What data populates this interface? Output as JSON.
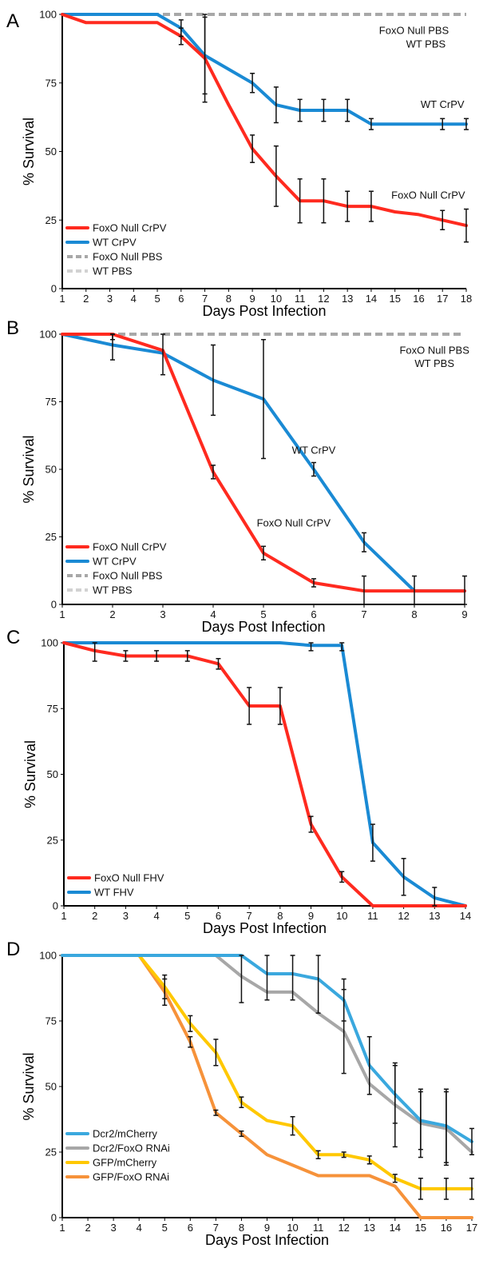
{
  "chart_data": [
    {
      "panel": "A",
      "type": "line",
      "xlabel": "Days Post Infection",
      "ylabel": "% Survival",
      "x": [
        1,
        2,
        3,
        4,
        5,
        6,
        7,
        8,
        9,
        10,
        11,
        12,
        13,
        14,
        15,
        16,
        17,
        18
      ],
      "xlim": [
        1,
        18
      ],
      "ylim": [
        0,
        100
      ],
      "yticks": [
        0,
        25,
        50,
        75,
        100
      ],
      "grid": false,
      "legend_position": "bottom-left",
      "series": [
        {
          "name": "FoxO Null CrPV",
          "color": "#ff2a1f",
          "dash": false,
          "x": [
            1,
            2,
            3,
            4,
            5,
            6,
            7,
            8,
            9,
            10,
            11,
            12,
            13,
            14,
            15,
            16,
            17,
            18
          ],
          "y": [
            100,
            97,
            97,
            97,
            97,
            92,
            84,
            67,
            51,
            41,
            32,
            32,
            30,
            30,
            28,
            27,
            25,
            23
          ],
          "err": [
            0,
            0,
            0,
            0,
            0,
            3,
            16,
            0,
            5,
            11,
            8,
            8,
            5.5,
            5.5,
            0,
            0,
            3.5,
            6
          ]
        },
        {
          "name": "WT CrPV",
          "color": "#1a8ad4",
          "dash": false,
          "x": [
            1,
            2,
            3,
            4,
            5,
            6,
            7,
            8,
            9,
            10,
            11,
            12,
            13,
            14,
            15,
            16,
            17,
            18
          ],
          "y": [
            100,
            100,
            100,
            100,
            100,
            95,
            85,
            80,
            75,
            67,
            65,
            65,
            65,
            60,
            60,
            60,
            60,
            60
          ],
          "err": [
            0,
            0,
            0,
            0,
            0,
            3,
            14,
            0,
            3.5,
            6.5,
            4,
            4,
            4,
            2,
            0,
            0,
            2,
            2
          ]
        },
        {
          "name": "FoxO Null PBS",
          "color": "#a8a8a8",
          "dash": true,
          "x": [
            1,
            18
          ],
          "y": [
            100,
            100
          ],
          "err": [
            0,
            0
          ]
        },
        {
          "name": "WT PBS",
          "color": "#d2d2d2",
          "dash": true,
          "x": [
            1,
            18
          ],
          "y": [
            100,
            100
          ],
          "err": [
            0,
            0
          ]
        }
      ],
      "annotations": [
        {
          "text": "FoxO Null PBS",
          "x": 15.8,
          "y": 94
        },
        {
          "text": "WT PBS",
          "x": 16.3,
          "y": 89
        },
        {
          "text": "WT CrPV",
          "x": 17.0,
          "y": 67
        },
        {
          "text": "FoxO Null CrPV",
          "x": 16.4,
          "y": 34
        }
      ]
    },
    {
      "panel": "B",
      "type": "line",
      "xlabel": "Days Post Infection",
      "ylabel": "% Survival",
      "x": [
        1,
        2,
        3,
        4,
        5,
        6,
        7,
        8,
        9
      ],
      "xlim": [
        1,
        9
      ],
      "ylim": [
        0,
        100
      ],
      "yticks": [
        0,
        25,
        50,
        75,
        100
      ],
      "grid": false,
      "legend_position": "bottom-left",
      "series": [
        {
          "name": "FoxO Null CrPV",
          "color": "#ff2a1f",
          "dash": false,
          "x": [
            1,
            2,
            3,
            4,
            5,
            6,
            7,
            8,
            9
          ],
          "y": [
            100,
            100,
            94,
            49,
            19,
            8,
            5,
            5,
            5
          ],
          "err": [
            0,
            2,
            9,
            2.5,
            2.5,
            1.5,
            5.5,
            0,
            0
          ]
        },
        {
          "name": "WT CrPV",
          "color": "#1a8ad4",
          "dash": false,
          "x": [
            1,
            2,
            3,
            4,
            5,
            6,
            7,
            8,
            9
          ],
          "y": [
            100,
            96,
            93,
            83,
            76,
            50,
            23,
            5,
            5
          ],
          "err": [
            0,
            5.5,
            0,
            13,
            22,
            2.5,
            3.5,
            5.5,
            5.5
          ]
        },
        {
          "name": "FoxO Null PBS",
          "color": "#a8a8a8",
          "dash": true,
          "x": [
            1,
            9
          ],
          "y": [
            100,
            100
          ],
          "err": [
            0,
            0
          ]
        },
        {
          "name": "WT PBS",
          "color": "#d2d2d2",
          "dash": true,
          "x": [
            1,
            9
          ],
          "y": [
            100,
            100
          ],
          "err": [
            0,
            0
          ]
        }
      ],
      "annotations": [
        {
          "text": "FoxO Null PBS",
          "x": 8.4,
          "y": 94
        },
        {
          "text": "WT PBS",
          "x": 8.4,
          "y": 89
        },
        {
          "text": "WT CrPV",
          "x": 6.0,
          "y": 57
        },
        {
          "text": "FoxO Null CrPV",
          "x": 5.6,
          "y": 30
        }
      ]
    },
    {
      "panel": "C",
      "type": "line",
      "xlabel": "Days Post Infection",
      "ylabel": "% Survival",
      "x": [
        1,
        2,
        3,
        4,
        5,
        6,
        7,
        8,
        9,
        10,
        11,
        12,
        13,
        14
      ],
      "xlim": [
        1,
        14
      ],
      "ylim": [
        0,
        100
      ],
      "yticks": [
        0,
        25,
        50,
        75,
        100
      ],
      "grid": false,
      "legend_position": "bottom-left",
      "series": [
        {
          "name": "FoxO Null FHV",
          "color": "#ff2a1f",
          "dash": false,
          "x": [
            1,
            2,
            3,
            4,
            5,
            6,
            7,
            8,
            9,
            10,
            11,
            12,
            13,
            14
          ],
          "y": [
            100,
            97,
            95,
            95,
            95,
            92,
            76,
            76,
            31,
            11,
            0,
            0,
            0,
            0
          ],
          "err": [
            0,
            4,
            2,
            2,
            2,
            2,
            7,
            7,
            3,
            2,
            0,
            0,
            0,
            0
          ]
        },
        {
          "name": "WT FHV",
          "color": "#1a8ad4",
          "dash": false,
          "x": [
            1,
            2,
            3,
            4,
            5,
            6,
            7,
            8,
            9,
            10,
            11,
            12,
            13,
            14
          ],
          "y": [
            100,
            100,
            100,
            100,
            100,
            100,
            100,
            100,
            99,
            99,
            24,
            11,
            3,
            0
          ],
          "err": [
            0,
            0,
            0,
            0,
            0,
            0,
            0,
            0,
            2,
            2,
            7,
            7,
            4,
            0
          ]
        }
      ]
    },
    {
      "panel": "D",
      "type": "line",
      "xlabel": "Days Post Infection",
      "ylabel": "% Survival",
      "x": [
        1,
        2,
        3,
        4,
        5,
        6,
        7,
        8,
        9,
        10,
        11,
        12,
        13,
        14,
        15,
        16,
        17
      ],
      "xlim": [
        1,
        17
      ],
      "ylim": [
        0,
        100
      ],
      "yticks": [
        0,
        25,
        50,
        75,
        100
      ],
      "grid": false,
      "legend_position": "bottom-left",
      "series": [
        {
          "name": "Dcr2/mCherry",
          "color": "#3aa8de",
          "dash": false,
          "x": [
            1,
            2,
            3,
            4,
            5,
            6,
            7,
            8,
            9,
            10,
            11,
            12,
            13,
            14,
            15,
            16,
            17
          ],
          "y": [
            100,
            100,
            100,
            100,
            100,
            100,
            100,
            100,
            93,
            93,
            91,
            83,
            58,
            47,
            37,
            35,
            29
          ],
          "err": [
            0,
            0,
            0,
            0,
            0,
            0,
            0,
            0,
            10,
            10,
            13,
            8,
            11,
            11,
            11,
            14,
            5
          ]
        },
        {
          "name": "Dcr2/FoxO RNAi",
          "color": "#a7a7a7",
          "dash": false,
          "x": [
            1,
            2,
            3,
            4,
            5,
            6,
            7,
            8,
            9,
            10,
            11,
            12,
            13,
            14,
            15,
            16,
            17
          ],
          "y": [
            100,
            100,
            100,
            100,
            100,
            100,
            100,
            92,
            86,
            86,
            78,
            71,
            51,
            43,
            36,
            34,
            25
          ],
          "err": [
            0,
            0,
            0,
            0,
            0,
            0,
            0,
            10,
            0,
            0,
            0,
            16,
            0,
            16,
            13,
            14,
            0
          ]
        },
        {
          "name": "GFP/mCherry",
          "color": "#ffc800",
          "dash": false,
          "x": [
            1,
            2,
            3,
            4,
            5,
            6,
            7,
            8,
            9,
            10,
            11,
            12,
            13,
            14,
            15,
            16,
            17
          ],
          "y": [
            100,
            100,
            100,
            100,
            88,
            74,
            63,
            44,
            37,
            35,
            24,
            24,
            22,
            15,
            11,
            11,
            11
          ],
          "err": [
            0,
            0,
            0,
            0,
            4.5,
            3,
            5,
            2,
            0,
            3.5,
            1.5,
            1,
            1.5,
            1.5,
            4,
            4,
            4
          ]
        },
        {
          "name": "GFP/FoxO RNAi",
          "color": "#f6923a",
          "dash": false,
          "x": [
            1,
            2,
            3,
            4,
            5,
            6,
            7,
            8,
            9,
            10,
            11,
            12,
            13,
            14,
            15,
            16,
            17
          ],
          "y": [
            100,
            100,
            100,
            100,
            86,
            67,
            40,
            32,
            24,
            20,
            16,
            16,
            16,
            12,
            0,
            0,
            0
          ],
          "err": [
            0,
            0,
            0,
            0,
            5,
            2,
            1,
            1,
            0,
            0,
            0,
            0,
            0,
            0,
            0,
            0,
            0
          ]
        }
      ]
    }
  ]
}
